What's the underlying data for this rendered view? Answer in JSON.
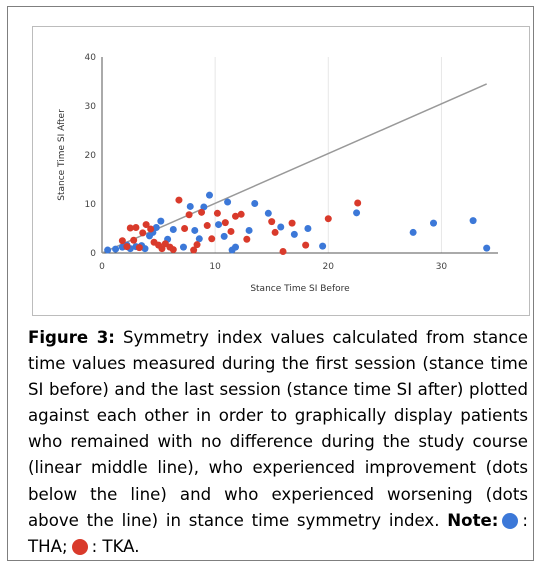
{
  "chart_data": {
    "type": "scatter",
    "title": "",
    "xlabel": "Stance Time SI Before",
    "ylabel": "Stance Time SI After",
    "xlim": [
      0,
      35
    ],
    "ylim": [
      0,
      40
    ],
    "xticks": [
      0,
      10,
      20,
      30
    ],
    "yticks": [
      0,
      10,
      20,
      30,
      40
    ],
    "grid": "vertical",
    "legend": "none",
    "reference_line": {
      "label": "linear middle line",
      "from": [
        0,
        0
      ],
      "to": [
        34,
        34.5
      ],
      "color": "#999999"
    },
    "series": [
      {
        "name": "THA",
        "color": "#3c78d8",
        "points": [
          [
            0.5,
            0.6
          ],
          [
            1.2,
            0.8
          ],
          [
            1.8,
            1.2
          ],
          [
            2.2,
            1.6
          ],
          [
            2.5,
            0.9
          ],
          [
            3.0,
            1.3
          ],
          [
            3.5,
            1.5
          ],
          [
            3.8,
            0.9
          ],
          [
            4.2,
            3.5
          ],
          [
            4.5,
            4.2
          ],
          [
            4.8,
            5.2
          ],
          [
            5.2,
            6.5
          ],
          [
            5.8,
            2.8
          ],
          [
            6.3,
            4.8
          ],
          [
            7.2,
            1.2
          ],
          [
            7.8,
            9.5
          ],
          [
            8.2,
            4.6
          ],
          [
            8.6,
            2.9
          ],
          [
            9.0,
            9.4
          ],
          [
            9.5,
            11.8
          ],
          [
            10.3,
            5.8
          ],
          [
            10.8,
            3.4
          ],
          [
            11.1,
            10.4
          ],
          [
            11.5,
            0.6
          ],
          [
            11.8,
            1.2
          ],
          [
            13.0,
            4.6
          ],
          [
            13.5,
            10.1
          ],
          [
            14.7,
            8.1
          ],
          [
            15.8,
            5.3
          ],
          [
            17.0,
            3.8
          ],
          [
            18.2,
            5.0
          ],
          [
            19.5,
            1.4
          ],
          [
            22.5,
            8.2
          ],
          [
            27.5,
            4.2
          ],
          [
            29.3,
            6.1
          ],
          [
            32.8,
            6.6
          ],
          [
            34.0,
            1.0
          ]
        ]
      },
      {
        "name": "TKA",
        "color": "#d93a2b",
        "points": [
          [
            1.8,
            2.5
          ],
          [
            2.2,
            1.3
          ],
          [
            2.5,
            5.1
          ],
          [
            2.8,
            2.6
          ],
          [
            3.0,
            5.2
          ],
          [
            3.3,
            1.1
          ],
          [
            3.6,
            4.1
          ],
          [
            3.9,
            5.8
          ],
          [
            4.3,
            4.9
          ],
          [
            4.6,
            2.2
          ],
          [
            5.0,
            1.6
          ],
          [
            5.3,
            0.9
          ],
          [
            5.6,
            1.9
          ],
          [
            6.0,
            1.2
          ],
          [
            6.3,
            0.7
          ],
          [
            6.8,
            10.8
          ],
          [
            7.3,
            5.0
          ],
          [
            7.7,
            7.8
          ],
          [
            8.1,
            0.6
          ],
          [
            8.4,
            1.7
          ],
          [
            8.8,
            8.3
          ],
          [
            9.3,
            5.6
          ],
          [
            9.7,
            2.9
          ],
          [
            10.2,
            8.1
          ],
          [
            10.9,
            6.2
          ],
          [
            11.4,
            4.4
          ],
          [
            11.8,
            7.5
          ],
          [
            12.3,
            7.9
          ],
          [
            12.8,
            2.8
          ],
          [
            15.0,
            6.4
          ],
          [
            15.3,
            4.2
          ],
          [
            16.0,
            0.3
          ],
          [
            16.8,
            6.1
          ],
          [
            18.0,
            1.6
          ],
          [
            20.0,
            7.0
          ],
          [
            22.6,
            10.2
          ]
        ]
      }
    ]
  },
  "caption": {
    "label": "Figure 3:",
    "text": "Symmetry index values calculated from stance time values measured during the first session (stance time SI before) and the last session (stance time SI after) plotted against each other in order to graphically display patients who remained with no difference during the study course (linear middle line), who experienced improvement (dots below the line) and who experienced worsening (dots above the line) in stance time symmetry index.",
    "note_label": "Note:",
    "legend_tha": ": THA;",
    "legend_tka": ": TKA."
  }
}
